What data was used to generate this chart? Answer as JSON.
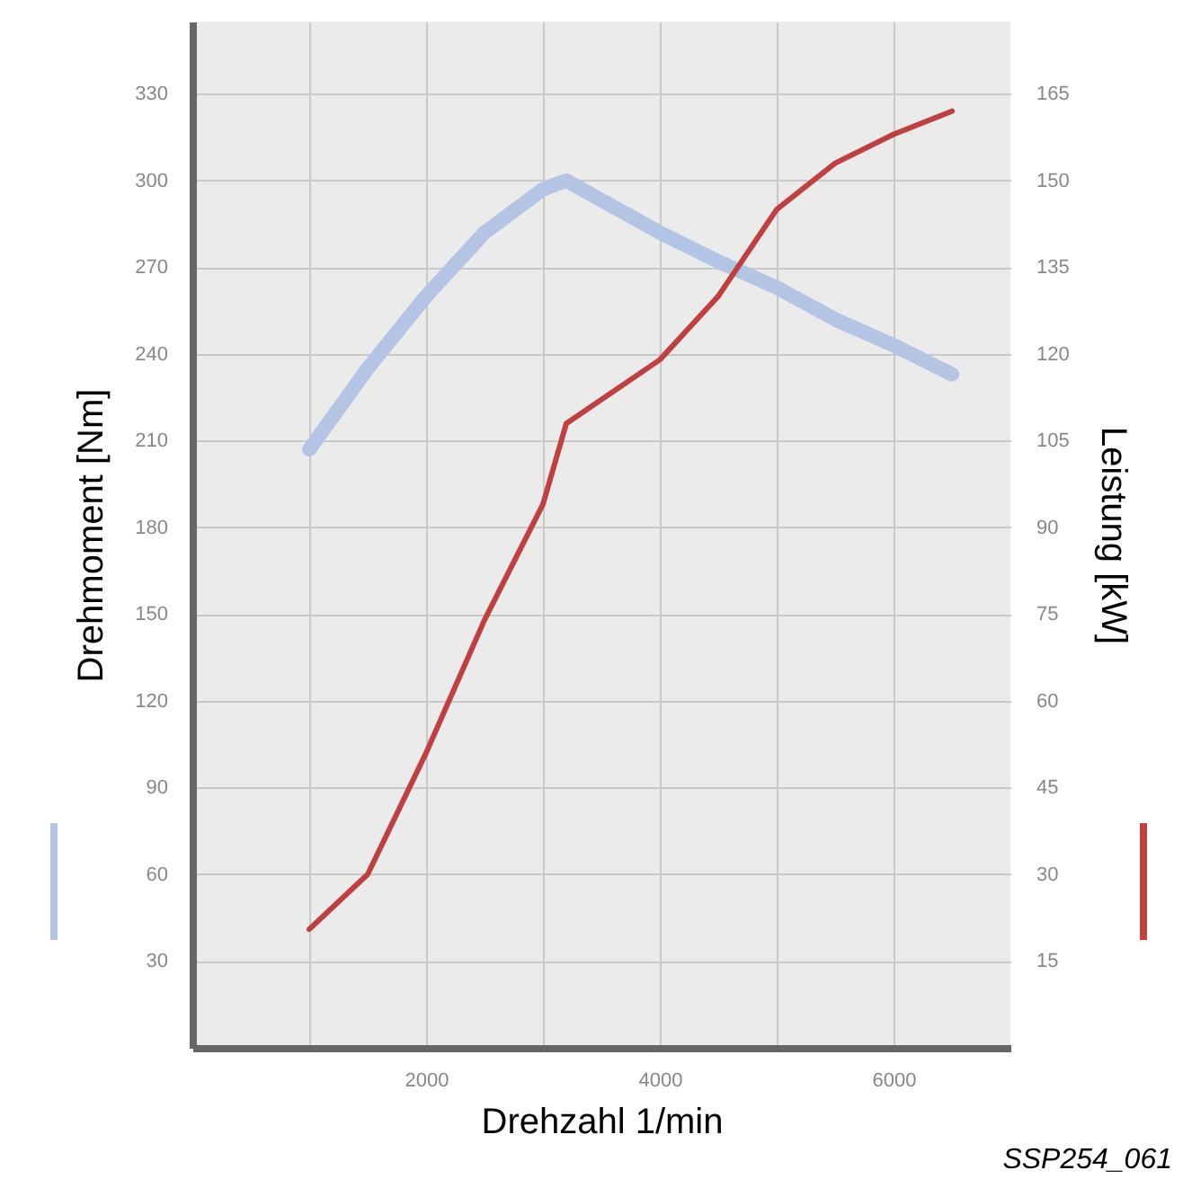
{
  "chart_data": {
    "type": "line",
    "xlabel": "Drehzahl 1/min",
    "ylabel": "Drehmoment [Nm]",
    "y2label": "Leistung [kW]",
    "x": [
      1000,
      1500,
      2000,
      2500,
      3000,
      3200,
      4000,
      4500,
      5000,
      5500,
      6000,
      6500
    ],
    "series": [
      {
        "color": "#b4c4e4",
        "values": [
          207,
          235,
          260,
          282,
          297,
          300,
          282,
          272,
          263,
          252,
          243,
          233
        ]
      },
      {
        "color": "#c04040",
        "axis": "y2",
        "values": [
          20.5,
          30,
          51,
          74,
          94,
          108,
          119,
          130,
          145,
          153,
          158,
          162
        ]
      }
    ],
    "xlim": [
      0,
      7000
    ],
    "xticks": [
      {
        "value": 1000,
        "label": null
      },
      2000,
      {
        "value": 3000,
        "label": null
      },
      4000,
      {
        "value": 5000,
        "label": null
      },
      6000
    ],
    "ylim": [
      0,
      355
    ],
    "yticks": [
      30,
      60,
      90,
      120,
      150,
      180,
      210,
      240,
      270,
      300,
      330
    ],
    "y2lim": [
      0,
      177.5
    ],
    "y2ticks": [
      15,
      30,
      45,
      60,
      75,
      90,
      105,
      120,
      135,
      150,
      165
    ],
    "grid": true,
    "marker": "none",
    "line_style": "solid",
    "annotations": [
      "SSP254_061"
    ]
  }
}
